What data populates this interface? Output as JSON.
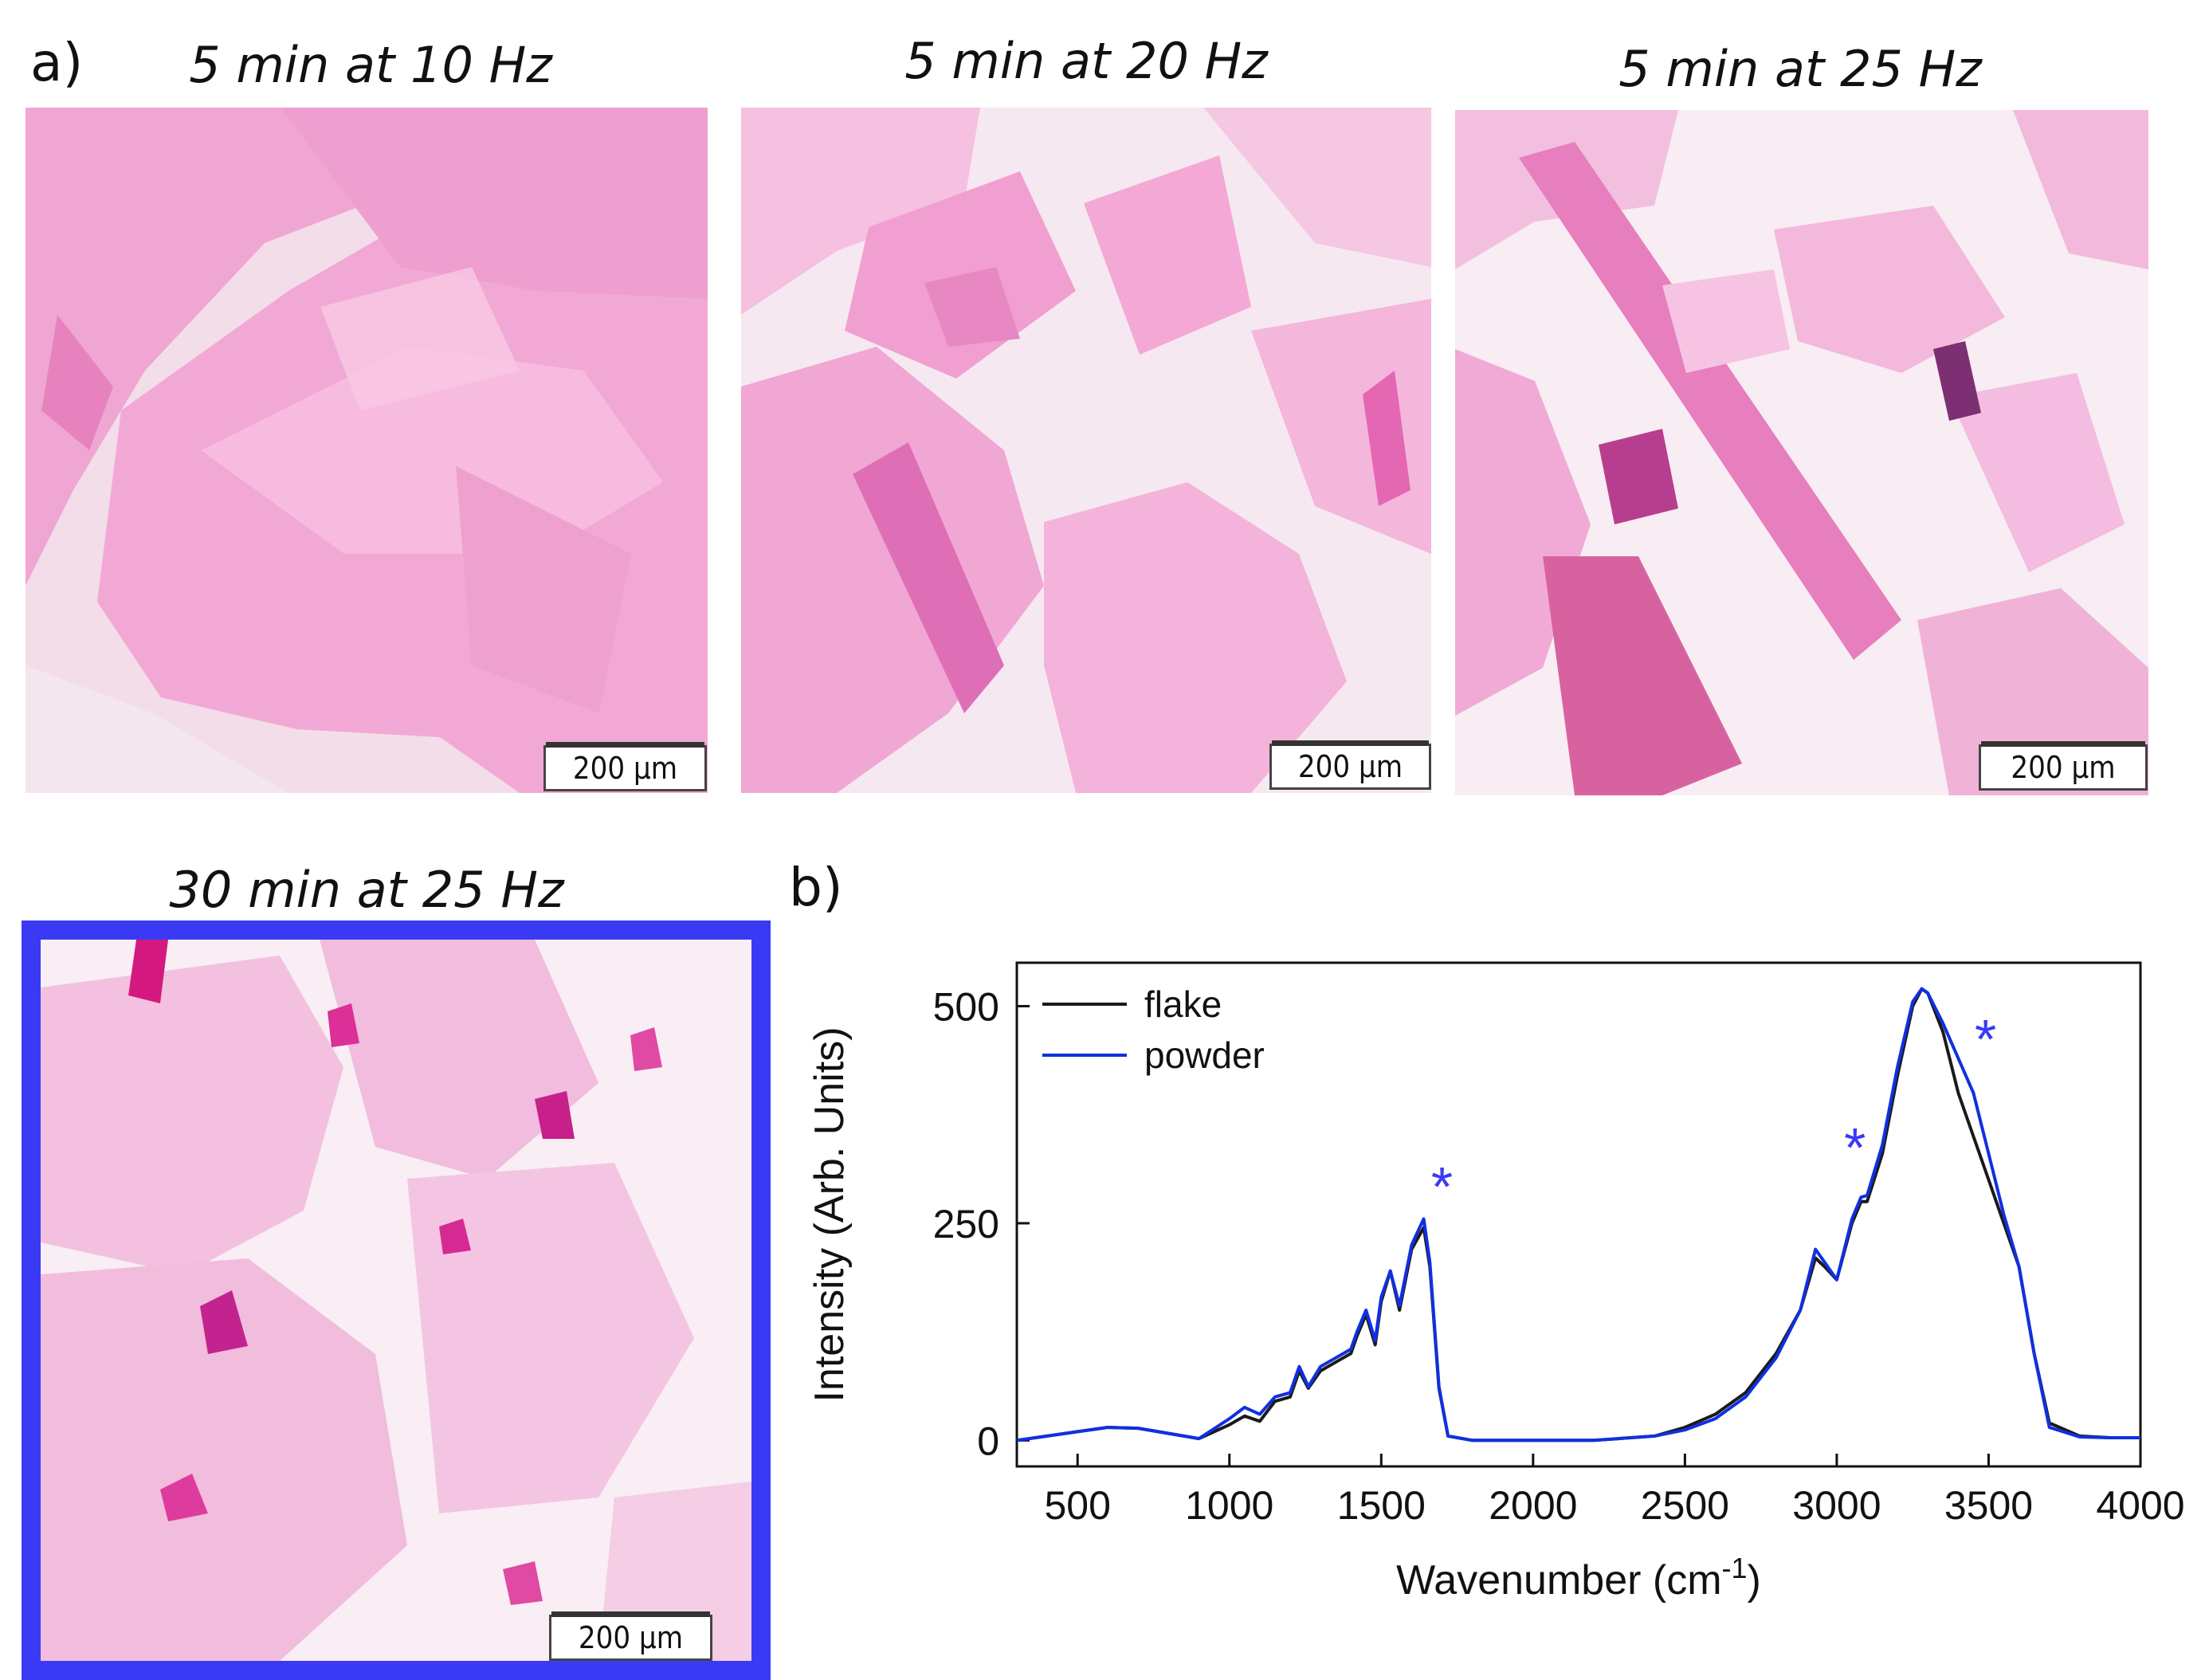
{
  "panel_a": {
    "label": "a)",
    "micrographs": [
      {
        "caption": "5 min at 10 Hz",
        "scale": "200 μm"
      },
      {
        "caption": "5 min at 20 Hz",
        "scale": "200 μm"
      },
      {
        "caption": "5 min at 25 Hz",
        "scale": "200 μm"
      },
      {
        "caption": "30 min at 25 Hz",
        "scale": "200 μm"
      }
    ]
  },
  "panel_b": {
    "label": "b)"
  },
  "chart_data": {
    "type": "line",
    "xlabel": "Wavenumber (cm",
    "xlabel_sup": "-1",
    "xlabel_close": ")",
    "ylabel": "Intensity (Arb. Units)",
    "xlim": [
      300,
      4000
    ],
    "ylim": [
      -30,
      550
    ],
    "xticks": [
      500,
      1000,
      1500,
      2000,
      2500,
      3000,
      3500,
      4000
    ],
    "yticks": [
      0,
      250,
      500
    ],
    "legend_position": "top-left",
    "series": [
      {
        "name": "flake",
        "color": "#1a1a1a",
        "x": [
          300,
          400,
          500,
          600,
          700,
          800,
          900,
          1000,
          1050,
          1100,
          1150,
          1200,
          1230,
          1260,
          1300,
          1350,
          1400,
          1420,
          1450,
          1480,
          1500,
          1530,
          1560,
          1600,
          1640,
          1660,
          1690,
          1720,
          1800,
          2000,
          2200,
          2400,
          2500,
          2600,
          2700,
          2800,
          2880,
          2930,
          2960,
          3000,
          3050,
          3080,
          3100,
          3150,
          3200,
          3250,
          3280,
          3300,
          3350,
          3400,
          3450,
          3500,
          3550,
          3600,
          3650,
          3700,
          3800,
          3900,
          4000
        ],
        "y": [
          0,
          5,
          10,
          15,
          14,
          8,
          2,
          18,
          28,
          22,
          45,
          50,
          80,
          60,
          80,
          90,
          100,
          120,
          145,
          110,
          160,
          195,
          150,
          220,
          245,
          200,
          60,
          5,
          0,
          0,
          0,
          5,
          15,
          30,
          55,
          100,
          150,
          210,
          200,
          185,
          250,
          275,
          275,
          330,
          420,
          500,
          520,
          515,
          470,
          400,
          350,
          300,
          250,
          200,
          100,
          20,
          5,
          3,
          3
        ]
      },
      {
        "name": "powder",
        "color": "#1030e0",
        "x": [
          300,
          400,
          500,
          600,
          700,
          800,
          900,
          1000,
          1050,
          1100,
          1150,
          1200,
          1230,
          1260,
          1300,
          1350,
          1400,
          1420,
          1450,
          1480,
          1500,
          1530,
          1560,
          1600,
          1640,
          1660,
          1690,
          1720,
          1800,
          2000,
          2200,
          2400,
          2500,
          2600,
          2700,
          2800,
          2880,
          2930,
          2960,
          3000,
          3050,
          3080,
          3100,
          3150,
          3200,
          3250,
          3280,
          3300,
          3350,
          3400,
          3450,
          3500,
          3550,
          3600,
          3650,
          3700,
          3800,
          3900,
          4000
        ],
        "y": [
          0,
          5,
          10,
          15,
          14,
          8,
          2,
          25,
          38,
          30,
          50,
          55,
          85,
          62,
          85,
          95,
          105,
          125,
          150,
          115,
          165,
          195,
          155,
          225,
          255,
          205,
          62,
          5,
          0,
          0,
          0,
          5,
          12,
          25,
          50,
          95,
          150,
          220,
          205,
          185,
          255,
          280,
          282,
          340,
          430,
          505,
          520,
          515,
          480,
          440,
          400,
          330,
          260,
          200,
          100,
          15,
          4,
          3,
          3
        ]
      }
    ],
    "annotations": [
      "*",
      "*",
      "*"
    ]
  }
}
